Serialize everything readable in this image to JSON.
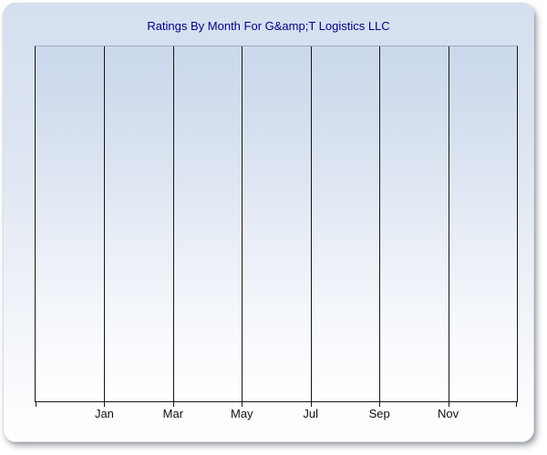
{
  "panel": {
    "title": "Ratings By Month For G&amp;T Logistics LLC"
  },
  "colors": {
    "title_text": "#000080",
    "axis_line": "#151515",
    "gridline": "#151515",
    "tick_label_text": "#101010",
    "plot_top_border": "#a3adbd",
    "panel_gradient_top": "#d5dfef",
    "panel_gradient_bottom": "#fefefe",
    "plot_gradient_top": "#cbd8ec",
    "plot_gradient_bottom": "#fdfeff",
    "page_background": "#ffffff"
  },
  "chart_data": {
    "type": "line",
    "title": "Ratings By Month For G&amp;T Logistics LLC",
    "x_tick_labels": [
      "Jan",
      "Mar",
      "May",
      "Jul",
      "Sep",
      "Nov"
    ],
    "x_axis_segments": 7,
    "series": [],
    "plot_empty": true,
    "grid": "vertical gridlines only",
    "legend": "none",
    "y_axis_tick_labels": "none"
  }
}
